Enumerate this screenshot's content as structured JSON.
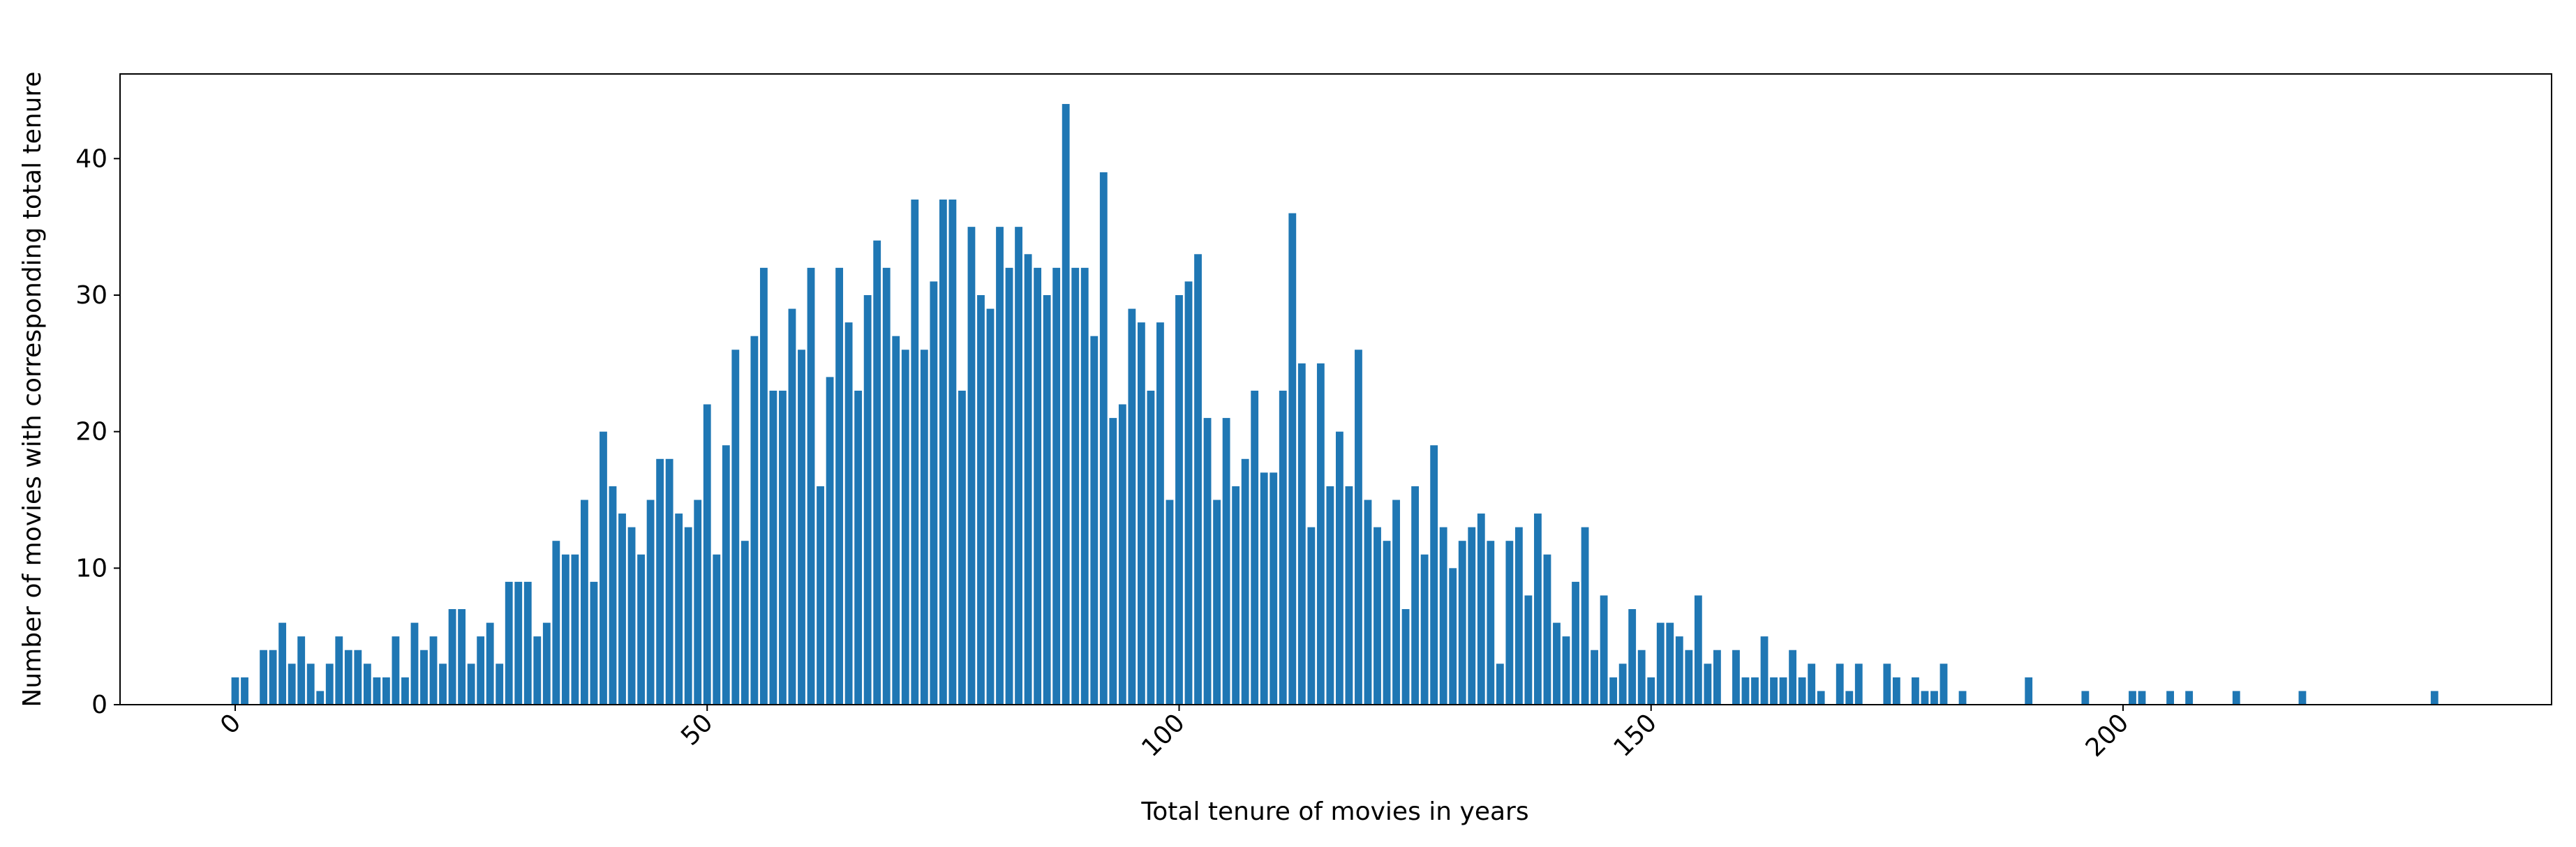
{
  "chart_data": {
    "type": "bar",
    "xlabel": "Total tenure of movies in years",
    "ylabel": "Number of movies with corresponding total tenure",
    "x": [
      0,
      1,
      3,
      4,
      5,
      6,
      7,
      8,
      9,
      10,
      11,
      12,
      13,
      14,
      15,
      16,
      17,
      18,
      19,
      20,
      21,
      22,
      23,
      24,
      25,
      26,
      27,
      28,
      29,
      30,
      31,
      32,
      33,
      34,
      35,
      36,
      37,
      38,
      39,
      40,
      41,
      42,
      43,
      44,
      45,
      46,
      47,
      48,
      49,
      50,
      51,
      52,
      53,
      54,
      55,
      56,
      57,
      58,
      59,
      60,
      61,
      62,
      63,
      64,
      65,
      66,
      67,
      68,
      69,
      70,
      71,
      72,
      73,
      74,
      75,
      76,
      77,
      78,
      79,
      80,
      81,
      82,
      83,
      84,
      85,
      86,
      87,
      88,
      89,
      90,
      91,
      92,
      93,
      94,
      95,
      96,
      97,
      98,
      99,
      100,
      101,
      102,
      103,
      104,
      105,
      106,
      107,
      108,
      109,
      110,
      111,
      112,
      113,
      114,
      115,
      116,
      117,
      118,
      119,
      120,
      121,
      122,
      123,
      124,
      125,
      126,
      127,
      128,
      129,
      130,
      131,
      132,
      133,
      134,
      135,
      136,
      137,
      138,
      139,
      140,
      141,
      142,
      143,
      144,
      145,
      146,
      147,
      148,
      149,
      150,
      151,
      152,
      153,
      154,
      155,
      156,
      157,
      159,
      160,
      161,
      162,
      163,
      164,
      165,
      166,
      167,
      168,
      170,
      171,
      172,
      175,
      176,
      178,
      179,
      180,
      181,
      183,
      190,
      196,
      201,
      202,
      205,
      207,
      212,
      219,
      233
    ],
    "values": [
      2,
      2,
      4,
      4,
      6,
      3,
      5,
      3,
      1,
      3,
      5,
      4,
      4,
      3,
      2,
      2,
      5,
      2,
      6,
      4,
      5,
      3,
      7,
      7,
      3,
      5,
      6,
      3,
      9,
      9,
      9,
      5,
      6,
      12,
      11,
      11,
      15,
      9,
      20,
      16,
      14,
      13,
      11,
      15,
      18,
      18,
      14,
      13,
      15,
      22,
      11,
      19,
      26,
      12,
      27,
      32,
      23,
      23,
      29,
      26,
      32,
      16,
      24,
      32,
      28,
      23,
      30,
      34,
      32,
      27,
      26,
      37,
      26,
      31,
      37,
      37,
      23,
      35,
      30,
      29,
      35,
      32,
      35,
      33,
      32,
      30,
      32,
      44,
      32,
      32,
      27,
      39,
      21,
      22,
      29,
      28,
      23,
      28,
      15,
      30,
      31,
      33,
      21,
      15,
      21,
      16,
      18,
      23,
      17,
      17,
      23,
      36,
      25,
      13,
      25,
      16,
      20,
      16,
      26,
      15,
      13,
      12,
      15,
      7,
      16,
      11,
      19,
      13,
      10,
      12,
      13,
      14,
      12,
      3,
      12,
      13,
      8,
      14,
      11,
      6,
      5,
      9,
      13,
      4,
      8,
      2,
      3,
      7,
      4,
      2,
      6,
      6,
      5,
      4,
      8,
      3,
      4,
      4,
      2,
      2,
      5,
      2,
      2,
      4,
      2,
      3,
      1,
      3,
      1,
      3,
      3,
      2,
      2,
      1,
      1,
      3,
      1,
      2,
      1,
      1,
      1,
      1,
      1,
      1,
      1,
      1
    ],
    "color": "#1f77b4",
    "xlim": [
      -12.2,
      245.4
    ],
    "xticks": [
      0,
      50,
      100,
      150,
      200
    ],
    "ylim": [
      0,
      46.2
    ],
    "yticks": [
      0,
      10,
      20,
      30,
      40
    ]
  }
}
